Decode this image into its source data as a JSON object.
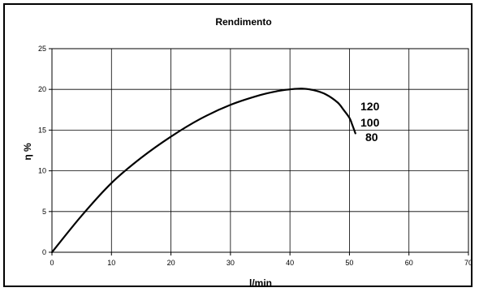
{
  "chart_data": {
    "type": "line",
    "title": "Rendimento",
    "xlabel": "l/min",
    "ylabel": "η %",
    "xlim": [
      0,
      70
    ],
    "ylim": [
      0,
      25
    ],
    "xticks": [
      "0",
      "10",
      "20",
      "30",
      "40",
      "50",
      "60",
      "70"
    ],
    "yticks": [
      "0",
      "5",
      "10",
      "15",
      "20",
      "25"
    ],
    "grid": true,
    "legend": "none",
    "series": [
      {
        "x": [
          0,
          5,
          10,
          15,
          20,
          25,
          30,
          35,
          38,
          40,
          42,
          44,
          46,
          48,
          49,
          50,
          50.5,
          51
        ],
        "y": [
          0,
          4.5,
          8.5,
          11.6,
          14.2,
          16.4,
          18.1,
          19.3,
          19.8,
          20.0,
          20.1,
          19.9,
          19.4,
          18.4,
          17.5,
          16.5,
          15.6,
          14.6
        ],
        "color": "#000000"
      }
    ],
    "annotations": [
      "120",
      "100",
      "80"
    ]
  }
}
